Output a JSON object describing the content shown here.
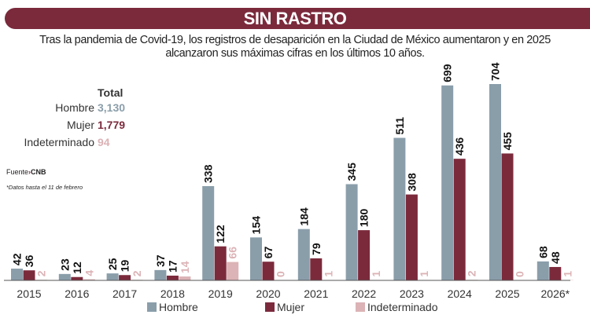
{
  "header": {
    "title": "SIN RASTRO",
    "subtitle": "Tras la pandemia de Covid-19, los registros de desaparición en la Ciudad de México aumentaron y en 2025 alcanzaron sus máximas cifras en los últimos 10 años."
  },
  "totals": {
    "heading": "Total",
    "rows": [
      {
        "label": "Hombre",
        "value": "3,130",
        "color": "#8a9eaa"
      },
      {
        "label": "Mujer",
        "value": "1,779",
        "color": "#7b2a3c"
      },
      {
        "label": "Indeterminado",
        "value": "94",
        "color": "#dcb3b6"
      }
    ]
  },
  "source": {
    "label": "Fuente",
    "value": "CNB"
  },
  "note": "*Datos hasta el 11 de febrero",
  "chart_data": {
    "type": "bar",
    "categories": [
      "2015",
      "2016",
      "2017",
      "2018",
      "2019",
      "2020",
      "2021",
      "2022",
      "2023",
      "2024",
      "2025",
      "2026*"
    ],
    "series": [
      {
        "name": "Hombre",
        "color": "#8a9eaa",
        "values": [
          42,
          23,
          25,
          37,
          338,
          154,
          184,
          345,
          511,
          699,
          704,
          68
        ]
      },
      {
        "name": "Mujer",
        "color": "#7b2a3c",
        "values": [
          36,
          12,
          19,
          17,
          122,
          67,
          79,
          180,
          308,
          436,
          455,
          48
        ]
      },
      {
        "name": "Indeterminado",
        "color": "#dcb3b6",
        "values": [
          2,
          4,
          2,
          14,
          66,
          0,
          1,
          1,
          1,
          2,
          0,
          1
        ]
      }
    ],
    "title": "",
    "xlabel": "",
    "ylabel": "",
    "ylim": [
      0,
      704
    ],
    "grid": false,
    "legend": "bottom"
  }
}
